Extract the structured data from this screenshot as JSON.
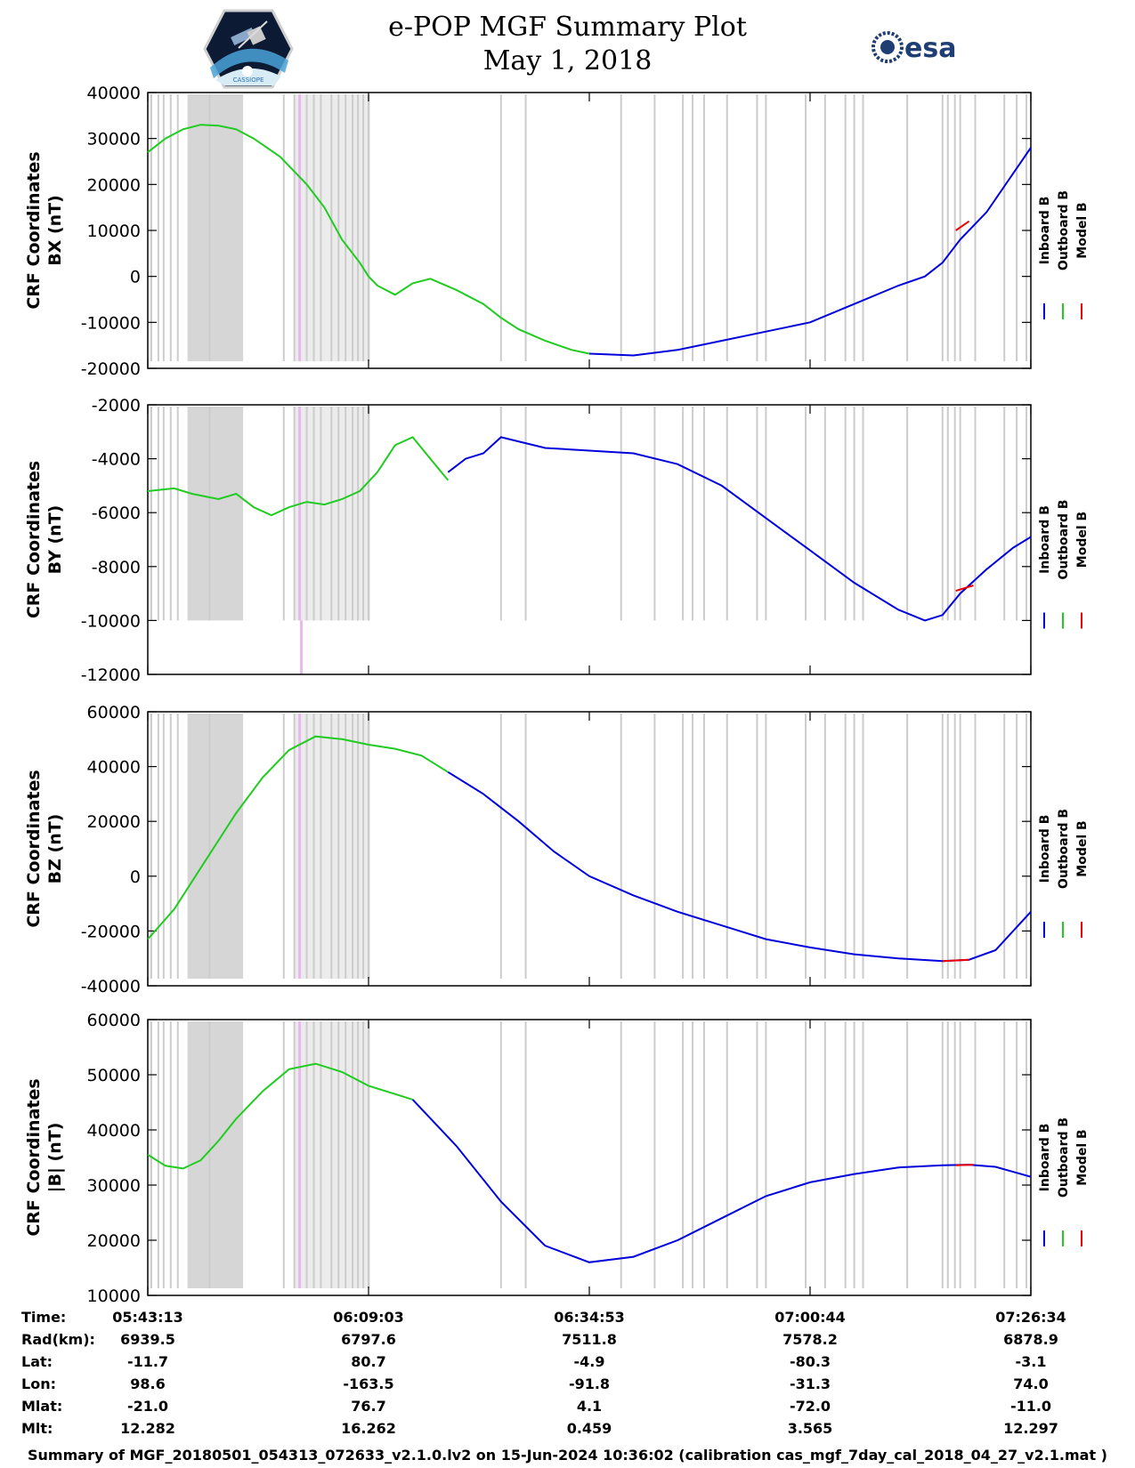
{
  "title": {
    "line1": "e-POP MGF Summary Plot",
    "line2": "May 1, 2018"
  },
  "logos": {
    "left": "CASSIOPE mission logo",
    "right": "esa"
  },
  "colors": {
    "inboard": "#0000dd",
    "outboard": "#1fcc1f",
    "model": "#ee0000",
    "shade": "#d6d6d6",
    "tick": "#cccccc",
    "pink": "#e8b8ee"
  },
  "legend": [
    "Inboard B",
    "Outboard B",
    "Model B"
  ],
  "chart_data": [
    {
      "type": "line",
      "ylabel": [
        "CRF Coordinates",
        "BX (nT)"
      ],
      "ylim": [
        -20000,
        40000
      ],
      "yticks": [
        "40000",
        "30000",
        "20000",
        "10000",
        "0",
        "-10000",
        "-20000"
      ],
      "series": [
        {
          "name": "Outboard B",
          "x": [
            0,
            0.02,
            0.04,
            0.06,
            0.08,
            0.1,
            0.12,
            0.15,
            0.18,
            0.2,
            0.22,
            0.24,
            0.25,
            0.26,
            0.28,
            0.3,
            0.32,
            0.35,
            0.38,
            0.4,
            0.42,
            0.45,
            0.48,
            0.5
          ],
          "y": [
            27000,
            30000,
            32000,
            33000,
            32800,
            32000,
            30000,
            26000,
            20000,
            15000,
            8000,
            3000,
            0,
            -2000,
            -4000,
            -1500,
            -500,
            -3000,
            -6000,
            -9000,
            -11500,
            -14000,
            -16000,
            -16800
          ]
        },
        {
          "name": "Inboard B",
          "x": [
            0.5,
            0.55,
            0.6,
            0.65,
            0.7,
            0.75,
            0.8,
            0.85,
            0.88,
            0.9,
            0.92,
            0.95,
            1.0
          ],
          "y": [
            -16800,
            -17200,
            -16000,
            -14000,
            -12000,
            -10000,
            -6000,
            -2000,
            0,
            3000,
            8000,
            14000,
            28000
          ]
        }
      ],
      "model_segment": {
        "x": [
          0.915,
          0.93
        ],
        "y": [
          10000,
          12000
        ]
      }
    },
    {
      "type": "line",
      "ylabel": [
        "CRF Coordinates",
        "BY (nT)"
      ],
      "ylim": [
        -12000,
        -2000
      ],
      "yticks": [
        "-2000",
        "-4000",
        "-6000",
        "-8000",
        "-10000",
        "-12000"
      ],
      "series": [
        {
          "name": "Outboard B",
          "x": [
            0,
            0.03,
            0.05,
            0.08,
            0.1,
            0.12,
            0.14,
            0.16,
            0.18,
            0.2,
            0.22,
            0.24,
            0.26,
            0.28,
            0.3,
            0.32,
            0.34
          ],
          "y": [
            -5200,
            -5100,
            -5300,
            -5500,
            -5300,
            -5800,
            -6100,
            -5800,
            -5600,
            -5700,
            -5500,
            -5200,
            -4500,
            -3500,
            -3200,
            -4000,
            -4800
          ]
        },
        {
          "name": "Inboard B",
          "x": [
            0.34,
            0.36,
            0.38,
            0.4,
            0.45,
            0.5,
            0.55,
            0.6,
            0.65,
            0.7,
            0.75,
            0.8,
            0.85,
            0.88,
            0.9,
            0.92,
            0.95,
            0.98,
            1.0
          ],
          "y": [
            -4500,
            -4000,
            -3800,
            -3200,
            -3600,
            -3700,
            -3800,
            -4200,
            -5000,
            -6200,
            -7400,
            -8600,
            -9600,
            -10000,
            -9800,
            -9000,
            -8100,
            -7300,
            -6900
          ]
        }
      ],
      "model_segment": {
        "x": [
          0.915,
          0.935
        ],
        "y": [
          -8900,
          -8700
        ]
      }
    },
    {
      "type": "line",
      "ylabel": [
        "CRF Coordinates",
        "BZ (nT)"
      ],
      "ylim": [
        -40000,
        60000
      ],
      "yticks": [
        "60000",
        "40000",
        "20000",
        "0",
        "-20000",
        "-40000"
      ],
      "series": [
        {
          "name": "Outboard B",
          "x": [
            0,
            0.03,
            0.06,
            0.1,
            0.13,
            0.16,
            0.19,
            0.22,
            0.25,
            0.28,
            0.31,
            0.34
          ],
          "y": [
            -23000,
            -12000,
            3000,
            23000,
            36000,
            46000,
            51000,
            50000,
            48000,
            46500,
            44000,
            38000
          ]
        },
        {
          "name": "Inboard B",
          "x": [
            0.34,
            0.38,
            0.42,
            0.46,
            0.5,
            0.55,
            0.6,
            0.65,
            0.7,
            0.75,
            0.8,
            0.85,
            0.9,
            0.93,
            0.96,
            1.0
          ],
          "y": [
            38000,
            30000,
            20000,
            9000,
            0,
            -7000,
            -13000,
            -18000,
            -23000,
            -26000,
            -28500,
            -30000,
            -31000,
            -30500,
            -27000,
            -13000
          ]
        }
      ],
      "model_segment": {
        "x": [
          0.9,
          0.93
        ],
        "y": [
          -31000,
          -30500
        ]
      }
    },
    {
      "type": "line",
      "ylabel": [
        "CRF Coordinates",
        "|B| (nT)"
      ],
      "ylim": [
        10000,
        60000
      ],
      "yticks": [
        "60000",
        "50000",
        "40000",
        "30000",
        "20000",
        "10000"
      ],
      "series": [
        {
          "name": "Outboard B",
          "x": [
            0,
            0.02,
            0.04,
            0.06,
            0.08,
            0.1,
            0.13,
            0.16,
            0.19,
            0.22,
            0.25,
            0.28,
            0.3
          ],
          "y": [
            35500,
            33500,
            33000,
            34500,
            38000,
            42000,
            47000,
            51000,
            52000,
            50500,
            48000,
            46500,
            45500
          ]
        },
        {
          "name": "Inboard B",
          "x": [
            0.3,
            0.35,
            0.4,
            0.45,
            0.5,
            0.55,
            0.6,
            0.65,
            0.7,
            0.75,
            0.8,
            0.85,
            0.9,
            0.93,
            0.96,
            1.0
          ],
          "y": [
            45500,
            37000,
            27000,
            19000,
            16000,
            17000,
            20000,
            24000,
            28000,
            30500,
            32000,
            33200,
            33600,
            33700,
            33300,
            31500
          ]
        }
      ],
      "model_segment": {
        "x": [
          0.915,
          0.935
        ],
        "y": [
          33600,
          33700
        ]
      }
    }
  ],
  "table": {
    "labels": [
      "Time:",
      "Rad(km):",
      "Lat:",
      "Lon:",
      "Mlat:",
      "Mlt:"
    ],
    "columns": [
      [
        "05:43:13",
        "6939.5",
        "-11.7",
        "98.6",
        "-21.0",
        "12.282"
      ],
      [
        "06:09:03",
        "6797.6",
        "80.7",
        "-163.5",
        "76.7",
        "16.262"
      ],
      [
        "06:34:53",
        "7511.8",
        "-4.9",
        "-91.8",
        "4.1",
        "0.459"
      ],
      [
        "07:00:44",
        "7578.2",
        "-80.3",
        "-31.3",
        "-72.0",
        "3.565"
      ],
      [
        "07:26:34",
        "6878.9",
        "-3.1",
        "74.0",
        "-11.0",
        "12.297"
      ]
    ]
  },
  "footer": "Summary of MGF_20180501_054313_072633_v2.1.0.lv2 on 15-Jun-2024 10:36:02 (calibration cas_mgf_7day_cal_2018_04_27_v2.1.mat )"
}
